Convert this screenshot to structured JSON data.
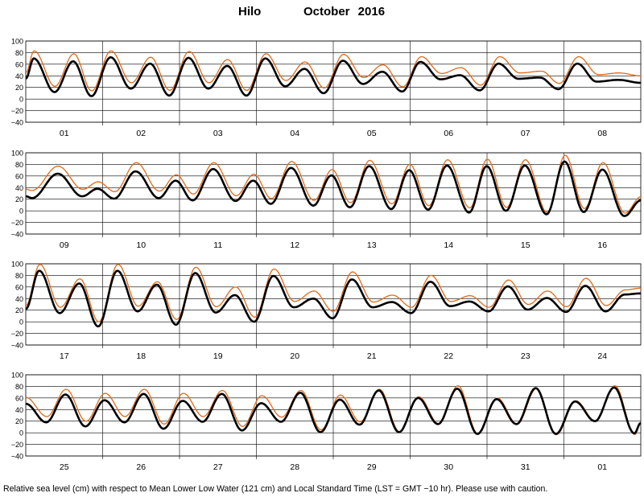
{
  "station": "Hilo",
  "period": "October 2016",
  "footnote": "Relative sea level (cm) with respect to Mean Lower Low Water (121 cm) and Local Standard Time (LST = GMT −10 hr). Please use with caution.",
  "colors": {
    "observed": "#000000",
    "predicted": "#e06a1a",
    "grid": "#000000"
  },
  "chart_data": {
    "type": "line",
    "ylim": [
      -40,
      100
    ],
    "yticks": [
      -40,
      -20,
      0,
      20,
      40,
      60,
      80,
      100
    ],
    "ytick_labels": [
      "−40",
      "−20",
      "0",
      "20",
      "40",
      "60",
      "80",
      "100"
    ],
    "grid": true,
    "series_note": "",
    "panels": [
      {
        "days": [
          "01",
          "02",
          "03",
          "04",
          "05",
          "06",
          "07",
          "08"
        ],
        "observed_extremes": [
          [
            0,
            35
          ],
          [
            2.5,
            70
          ],
          [
            9,
            12
          ],
          [
            14.8,
            65
          ],
          [
            20.5,
            5
          ],
          [
            26.5,
            72
          ],
          [
            32.8,
            18
          ],
          [
            38.8,
            61
          ],
          [
            44.8,
            6
          ],
          [
            50.8,
            71
          ],
          [
            57,
            18
          ],
          [
            62.9,
            57
          ],
          [
            68.9,
            6
          ],
          [
            74.8,
            70
          ],
          [
            81,
            22
          ],
          [
            87,
            52
          ],
          [
            93,
            10
          ],
          [
            99,
            66
          ],
          [
            105.3,
            26
          ],
          [
            111.3,
            47
          ],
          [
            117.5,
            13
          ],
          [
            123.2,
            64
          ],
          [
            129.5,
            34
          ],
          [
            135.6,
            41
          ],
          [
            141.7,
            15
          ],
          [
            147.6,
            61
          ],
          [
            153.8,
            35
          ],
          [
            160.5,
            37
          ],
          [
            166.3,
            17
          ],
          [
            172.2,
            61
          ],
          [
            178.2,
            30
          ],
          [
            185,
            33
          ],
          [
            192,
            28
          ]
        ],
        "predicted_extremes": [
          [
            0,
            45
          ],
          [
            2.6,
            83
          ],
          [
            9.1,
            22
          ],
          [
            15,
            78
          ],
          [
            20.6,
            14
          ],
          [
            26.6,
            83
          ],
          [
            33,
            28
          ],
          [
            39,
            72
          ],
          [
            45,
            15
          ],
          [
            51,
            82
          ],
          [
            57.2,
            28
          ],
          [
            63,
            68
          ],
          [
            69,
            15
          ],
          [
            75,
            78
          ],
          [
            81.2,
            32
          ],
          [
            87.2,
            64
          ],
          [
            93.2,
            19
          ],
          [
            99.2,
            77
          ],
          [
            105.5,
            37
          ],
          [
            111.5,
            59
          ],
          [
            117.7,
            21
          ],
          [
            123.5,
            73
          ],
          [
            129.8,
            44
          ],
          [
            135.9,
            54
          ],
          [
            142,
            24
          ],
          [
            148,
            73
          ],
          [
            154.2,
            45
          ],
          [
            161,
            48
          ],
          [
            166.6,
            27
          ],
          [
            172.6,
            73
          ],
          [
            178.8,
            42
          ],
          [
            185.2,
            45
          ],
          [
            192,
            40
          ]
        ]
      },
      {
        "days": [
          "09",
          "10",
          "11",
          "12",
          "13",
          "14",
          "15",
          "16"
        ],
        "observed_extremes": [
          [
            0,
            25
          ],
          [
            2,
            22
          ],
          [
            10,
            64
          ],
          [
            17.6,
            25
          ],
          [
            22.4,
            38
          ],
          [
            27.6,
            21
          ],
          [
            34.3,
            68
          ],
          [
            41.5,
            22
          ],
          [
            46.8,
            52
          ],
          [
            52.1,
            18
          ],
          [
            58.5,
            72
          ],
          [
            65.5,
            17
          ],
          [
            71,
            52
          ],
          [
            76.5,
            12
          ],
          [
            82.8,
            74
          ],
          [
            89.8,
            9
          ],
          [
            95.4,
            61
          ],
          [
            101.2,
            6
          ],
          [
            107.2,
            77
          ],
          [
            114.1,
            3
          ],
          [
            119.7,
            70
          ],
          [
            125.6,
            2
          ],
          [
            131.5,
            78
          ],
          [
            138.4,
            -3
          ],
          [
            143.9,
            77
          ],
          [
            149.9,
            0
          ],
          [
            155.8,
            78
          ],
          [
            162.6,
            -6
          ],
          [
            168.2,
            85
          ],
          [
            174.2,
            -2
          ],
          [
            180,
            71
          ],
          [
            186.9,
            -9
          ],
          [
            192,
            18
          ]
        ],
        "predicted_extremes": [
          [
            0,
            37
          ],
          [
            2,
            35
          ],
          [
            10.1,
            77
          ],
          [
            17.8,
            37
          ],
          [
            22.6,
            50
          ],
          [
            27.8,
            33
          ],
          [
            34.5,
            83
          ],
          [
            41.7,
            34
          ],
          [
            47,
            62
          ],
          [
            52.3,
            29
          ],
          [
            58.7,
            83
          ],
          [
            65.7,
            26
          ],
          [
            71.2,
            63
          ],
          [
            76.7,
            21
          ],
          [
            83,
            85
          ],
          [
            90,
            18
          ],
          [
            95.6,
            71
          ],
          [
            101.4,
            14
          ],
          [
            107.4,
            87
          ],
          [
            114.3,
            12
          ],
          [
            119.9,
            80
          ],
          [
            125.8,
            9
          ],
          [
            131.7,
            88
          ],
          [
            138.6,
            5
          ],
          [
            144.1,
            89
          ],
          [
            150.1,
            6
          ],
          [
            156,
            88
          ],
          [
            162.8,
            -3
          ],
          [
            168.4,
            96
          ],
          [
            174.4,
            4
          ],
          [
            180.2,
            83
          ],
          [
            187.1,
            -4
          ],
          [
            192,
            24
          ]
        ]
      },
      {
        "days": [
          "17",
          "18",
          "19",
          "20",
          "21",
          "22",
          "23",
          "24"
        ],
        "observed_extremes": [
          [
            0,
            22
          ],
          [
            4.2,
            88
          ],
          [
            10.6,
            15
          ],
          [
            16.7,
            66
          ],
          [
            22.6,
            -8
          ],
          [
            28.6,
            88
          ],
          [
            34.9,
            18
          ],
          [
            40.9,
            64
          ],
          [
            46.9,
            -5
          ],
          [
            52.9,
            84
          ],
          [
            59.3,
            16
          ],
          [
            65.3,
            46
          ],
          [
            71.3,
            0
          ],
          [
            77.3,
            79
          ],
          [
            83.7,
            25
          ],
          [
            89.8,
            40
          ],
          [
            95.8,
            6
          ],
          [
            101.8,
            73
          ],
          [
            108.3,
            25
          ],
          [
            114.3,
            34
          ],
          [
            120.3,
            15
          ],
          [
            126.3,
            69
          ],
          [
            132.5,
            27
          ],
          [
            138.5,
            35
          ],
          [
            144.5,
            18
          ],
          [
            150.5,
            61
          ],
          [
            156.7,
            21
          ],
          [
            162.7,
            41
          ],
          [
            168.7,
            17
          ],
          [
            174.7,
            62
          ],
          [
            181,
            18
          ],
          [
            187,
            47
          ],
          [
            192,
            49
          ]
        ],
        "predicted_extremes": [
          [
            0,
            28
          ],
          [
            4.4,
            99
          ],
          [
            10.8,
            25
          ],
          [
            16.9,
            74
          ],
          [
            22.8,
            0
          ],
          [
            28.8,
            99
          ],
          [
            35.1,
            27
          ],
          [
            41.1,
            69
          ],
          [
            47.1,
            4
          ],
          [
            53.1,
            94
          ],
          [
            59.5,
            26
          ],
          [
            65.5,
            60
          ],
          [
            71.5,
            8
          ],
          [
            77.5,
            91
          ],
          [
            83.9,
            35
          ],
          [
            90,
            53
          ],
          [
            96,
            18
          ],
          [
            102,
            86
          ],
          [
            108.5,
            34
          ],
          [
            114.5,
            46
          ],
          [
            120.5,
            25
          ],
          [
            126.5,
            80
          ],
          [
            132.7,
            35
          ],
          [
            138.7,
            45
          ],
          [
            144.7,
            25
          ],
          [
            150.7,
            72
          ],
          [
            156.9,
            30
          ],
          [
            162.9,
            53
          ],
          [
            168.9,
            26
          ],
          [
            174.9,
            75
          ],
          [
            181.2,
            28
          ],
          [
            187.2,
            55
          ],
          [
            192,
            58
          ]
        ]
      },
      {
        "days": [
          "25",
          "26",
          "27",
          "28",
          "29",
          "30",
          "31",
          "01"
        ],
        "observed_extremes": [
          [
            0,
            50
          ],
          [
            6.4,
            18
          ],
          [
            12.4,
            66
          ],
          [
            18.6,
            11
          ],
          [
            24.6,
            56
          ],
          [
            30.8,
            18
          ],
          [
            36.8,
            67
          ],
          [
            43,
            7
          ],
          [
            49,
            55
          ],
          [
            55.2,
            19
          ],
          [
            61.2,
            67
          ],
          [
            67.5,
            4
          ],
          [
            73.5,
            51
          ],
          [
            79.7,
            19
          ],
          [
            85.7,
            69
          ],
          [
            92,
            1
          ],
          [
            98,
            57
          ],
          [
            104.2,
            14
          ],
          [
            110.2,
            73
          ],
          [
            116.5,
            1
          ],
          [
            122.5,
            60
          ],
          [
            128.7,
            15
          ],
          [
            134.7,
            76
          ],
          [
            141,
            -2
          ],
          [
            147,
            58
          ],
          [
            153.2,
            15
          ],
          [
            159.2,
            77
          ],
          [
            165.5,
            -2
          ],
          [
            171.5,
            54
          ],
          [
            177.7,
            20
          ],
          [
            183.7,
            78
          ],
          [
            190,
            -1
          ],
          [
            192,
            17
          ]
        ],
        "predicted_extremes": [
          [
            0,
            61
          ],
          [
            6.6,
            28
          ],
          [
            12.6,
            75
          ],
          [
            18.8,
            20
          ],
          [
            24.8,
            68
          ],
          [
            31,
            28
          ],
          [
            37,
            75
          ],
          [
            43.2,
            15
          ],
          [
            49.2,
            68
          ],
          [
            55.4,
            28
          ],
          [
            61.4,
            73
          ],
          [
            67.7,
            11
          ],
          [
            73.7,
            64
          ],
          [
            79.9,
            27
          ],
          [
            85.9,
            73
          ],
          [
            92.2,
            5
          ],
          [
            98.2,
            65
          ],
          [
            104.4,
            19
          ],
          [
            110.4,
            75
          ],
          [
            116.7,
            2
          ],
          [
            122.7,
            62
          ],
          [
            128.9,
            16
          ],
          [
            134.9,
            81
          ],
          [
            141.2,
            -2
          ],
          [
            147.2,
            60
          ],
          [
            153.4,
            15
          ],
          [
            159.4,
            76
          ],
          [
            165.7,
            -3
          ],
          [
            171.7,
            55
          ],
          [
            177.9,
            20
          ],
          [
            183.9,
            81
          ],
          [
            190.2,
            -3
          ],
          [
            192,
            17
          ]
        ]
      }
    ]
  }
}
